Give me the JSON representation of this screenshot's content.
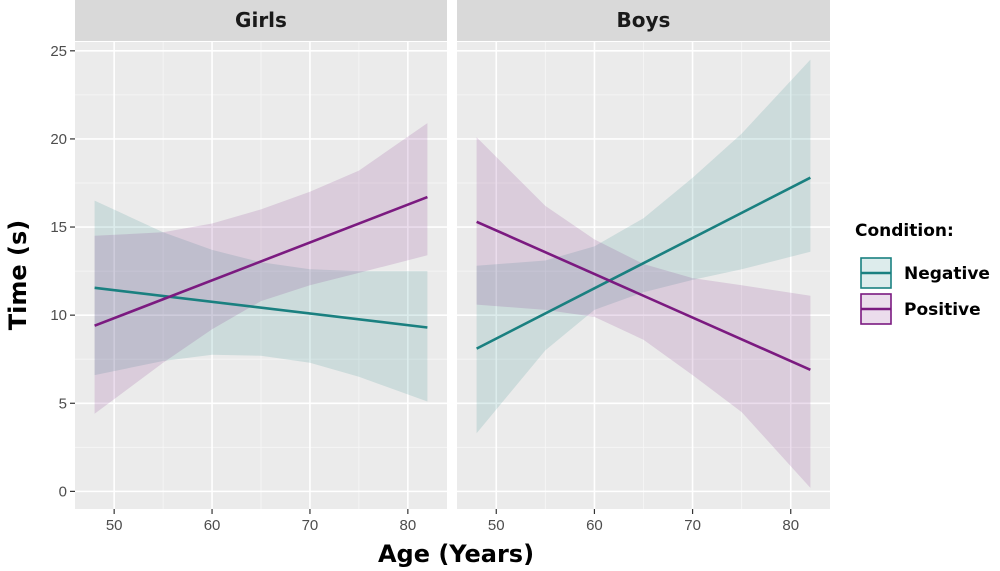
{
  "chart_data": {
    "type": "line",
    "ylabel": "Time (s)",
    "xlabel": "Age (Years)",
    "xlim": [
      46,
      84
    ],
    "ylim": [
      -1,
      25.5
    ],
    "xticks": [
      50,
      60,
      70,
      80
    ],
    "yticks": [
      0,
      5,
      10,
      15,
      20,
      25
    ],
    "grid": true,
    "legend": {
      "title": "Condition:",
      "position": "right",
      "entries": [
        {
          "name": "Negative",
          "color": "#1a8080"
        },
        {
          "name": "Positive",
          "color": "#7b1a80"
        }
      ]
    },
    "panels": [
      {
        "title": "Girls",
        "series": [
          {
            "name": "Negative",
            "color": "#1a8080",
            "x": [
              48,
              82
            ],
            "y": [
              11.55,
              9.3
            ],
            "band_x": [
              48,
              55,
              60,
              65,
              70,
              75,
              82
            ],
            "band_low": [
              6.6,
              7.4,
              7.75,
              7.7,
              7.3,
              6.5,
              5.1
            ],
            "band_high": [
              16.5,
              14.7,
              13.7,
              13.0,
              12.6,
              12.5,
              12.5
            ]
          },
          {
            "name": "Positive",
            "color": "#7b1a80",
            "x": [
              48,
              82
            ],
            "y": [
              9.4,
              16.7
            ],
            "band_x": [
              48,
              55,
              60,
              65,
              70,
              75,
              82
            ],
            "band_low": [
              4.4,
              7.3,
              9.2,
              10.8,
              11.7,
              12.4,
              13.4
            ],
            "band_high": [
              14.5,
              14.7,
              15.2,
              16.0,
              17.0,
              18.2,
              20.9
            ]
          }
        ]
      },
      {
        "title": "Boys",
        "series": [
          {
            "name": "Negative",
            "color": "#1a8080",
            "x": [
              48,
              82
            ],
            "y": [
              8.1,
              17.8
            ],
            "band_x": [
              48,
              55,
              60,
              65,
              70,
              75,
              82
            ],
            "band_low": [
              3.3,
              8.0,
              10.3,
              11.3,
              12.0,
              12.6,
              13.6
            ],
            "band_high": [
              12.8,
              13.1,
              13.9,
              15.5,
              17.8,
              20.3,
              24.5
            ]
          },
          {
            "name": "Positive",
            "color": "#7b1a80",
            "x": [
              48,
              82
            ],
            "y": [
              15.3,
              6.9
            ],
            "band_x": [
              48,
              55,
              60,
              65,
              70,
              75,
              82
            ],
            "band_low": [
              10.6,
              10.3,
              9.9,
              8.6,
              6.6,
              4.5,
              0.2
            ],
            "band_high": [
              20.1,
              16.2,
              14.3,
              12.9,
              12.1,
              11.7,
              11.1
            ]
          }
        ]
      }
    ]
  }
}
